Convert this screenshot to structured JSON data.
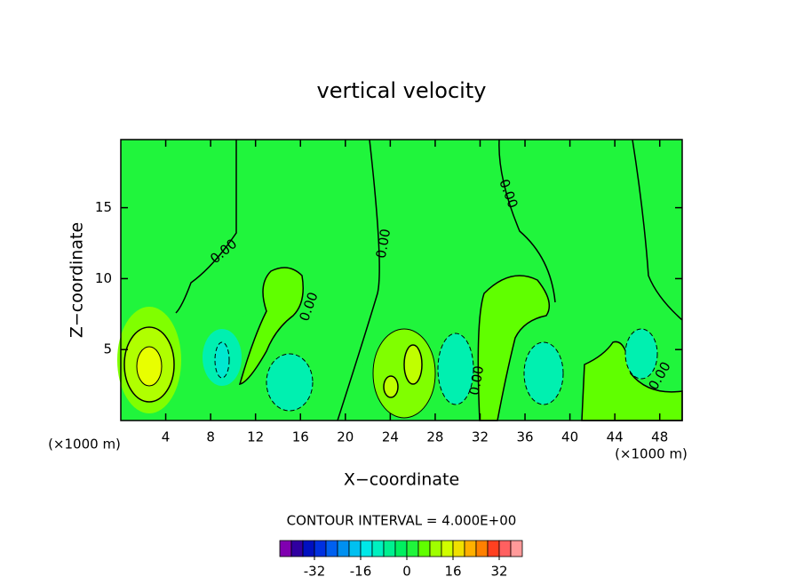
{
  "chart_data": {
    "type": "contour",
    "title": "vertical velocity",
    "x_label": "X−coordinate",
    "y_label": "Z−coordinate",
    "x_unit_labels": [
      "(×1000 m)",
      "(×1000 m)"
    ],
    "xlim": [
      0,
      50
    ],
    "xticks": [
      4,
      8,
      12,
      16,
      20,
      24,
      28,
      32,
      36,
      40,
      44,
      48
    ],
    "ylim": [
      0,
      19.8
    ],
    "yticks": [
      5,
      10,
      15
    ],
    "contour_labels": [
      "0.00",
      "0.00",
      "0.00",
      "0.00",
      "0.00",
      "0.00"
    ],
    "contour_interval_label": "CONTOUR INTERVAL = 4.000E+00",
    "colorbar": {
      "lim": [
        -44,
        40
      ],
      "ticks": [
        -32,
        -16,
        0,
        16,
        32
      ],
      "colors": [
        "#8000b0",
        "#3000a0",
        "#0010c0",
        "#0030e0",
        "#0060f0",
        "#0090f0",
        "#00c0f0",
        "#00e8e8",
        "#00f0c0",
        "#00f090",
        "#00f060",
        "#20f53c",
        "#60ff00",
        "#a0ff00",
        "#d0ff00",
        "#f0e000",
        "#ffb000",
        "#ff8000",
        "#ff4020",
        "#ff6060",
        "#ff9a9a"
      ]
    }
  }
}
